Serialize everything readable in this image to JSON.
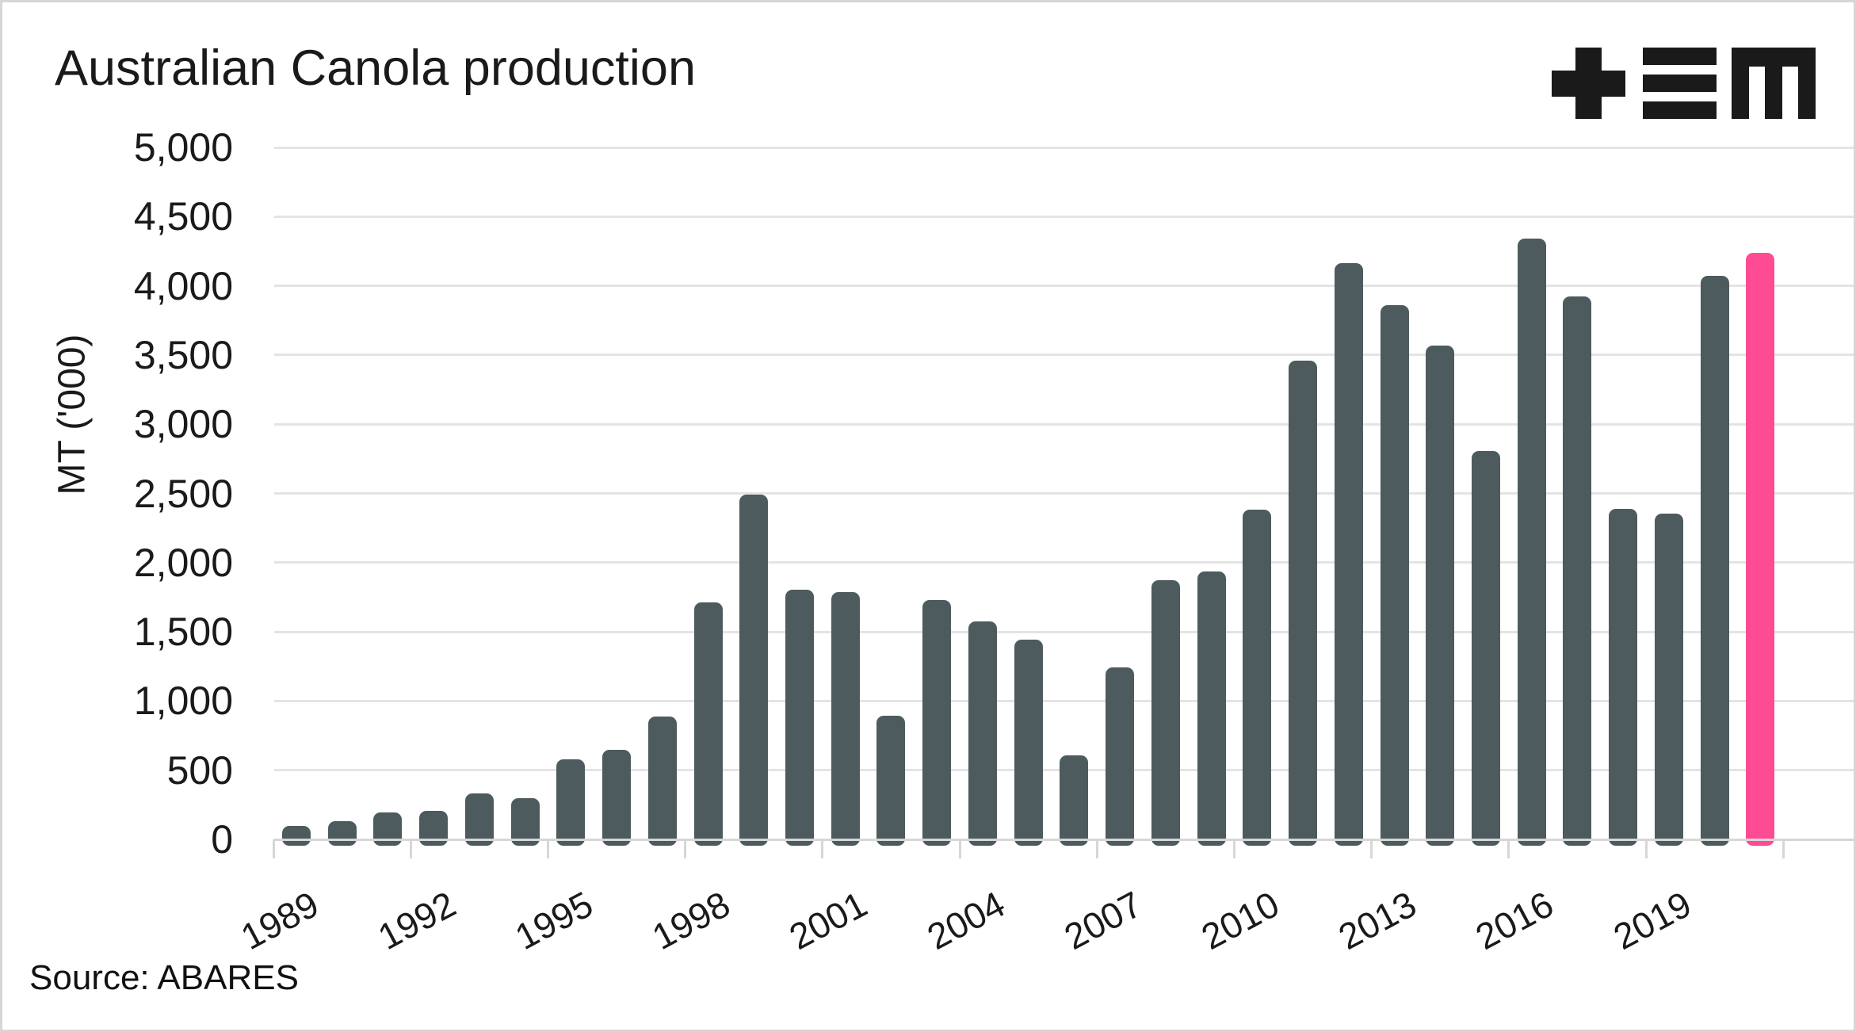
{
  "title": "Australian Canola production",
  "source": "Source: ABARES",
  "y_axis": {
    "label": "MT ('000)",
    "tick_labels": [
      "5,000",
      "4,500",
      "4,000",
      "3,500",
      "3,000",
      "2,500",
      "2,000",
      "1,500",
      "1,000",
      "500",
      "0"
    ],
    "tick_values": [
      5000,
      4500,
      4000,
      3500,
      3000,
      2500,
      2000,
      1500,
      1000,
      500,
      0
    ]
  },
  "x_axis": {
    "tick_labels": [
      "1989",
      "1992",
      "1995",
      "1998",
      "2001",
      "2004",
      "2007",
      "2010",
      "2013",
      "2016",
      "2019"
    ]
  },
  "logo": {
    "name": "tem-logo",
    "color": "#1a1a1a"
  },
  "colors": {
    "bar": "#4d5b5e",
    "highlight": "#ff4b94",
    "gridline": "#e4e4e4",
    "axis": "#d7d7d7",
    "text": "#1a1a1a",
    "background": "#ffffff",
    "border": "#d6d6d6"
  },
  "chart_data": {
    "type": "bar",
    "title": "Australian Canola production",
    "xlabel": "",
    "ylabel": "MT ('000)",
    "ylim": [
      0,
      5000
    ],
    "y_step": 500,
    "grid": "horizontal",
    "legend": "none",
    "categories": [
      1989,
      1990,
      1991,
      1992,
      1993,
      1994,
      1995,
      1996,
      1997,
      1998,
      1999,
      2000,
      2001,
      2002,
      2003,
      2004,
      2005,
      2006,
      2007,
      2008,
      2009,
      2010,
      2011,
      2012,
      2013,
      2014,
      2015,
      2016,
      2017,
      2018,
      2019,
      2020,
      2021
    ],
    "values": [
      100,
      130,
      195,
      205,
      330,
      295,
      580,
      650,
      885,
      1715,
      2490,
      1805,
      1785,
      895,
      1730,
      1575,
      1445,
      605,
      1240,
      1870,
      1935,
      2385,
      3460,
      4165,
      3860,
      3570,
      2805,
      4340,
      3925,
      2390,
      2355,
      4075,
      4240
    ],
    "highlight": {
      "category": 2021,
      "color": "#ff4b94",
      "note": "latest bar shown in pink"
    },
    "x_tick_every": 3,
    "source": "Source: ABARES"
  }
}
